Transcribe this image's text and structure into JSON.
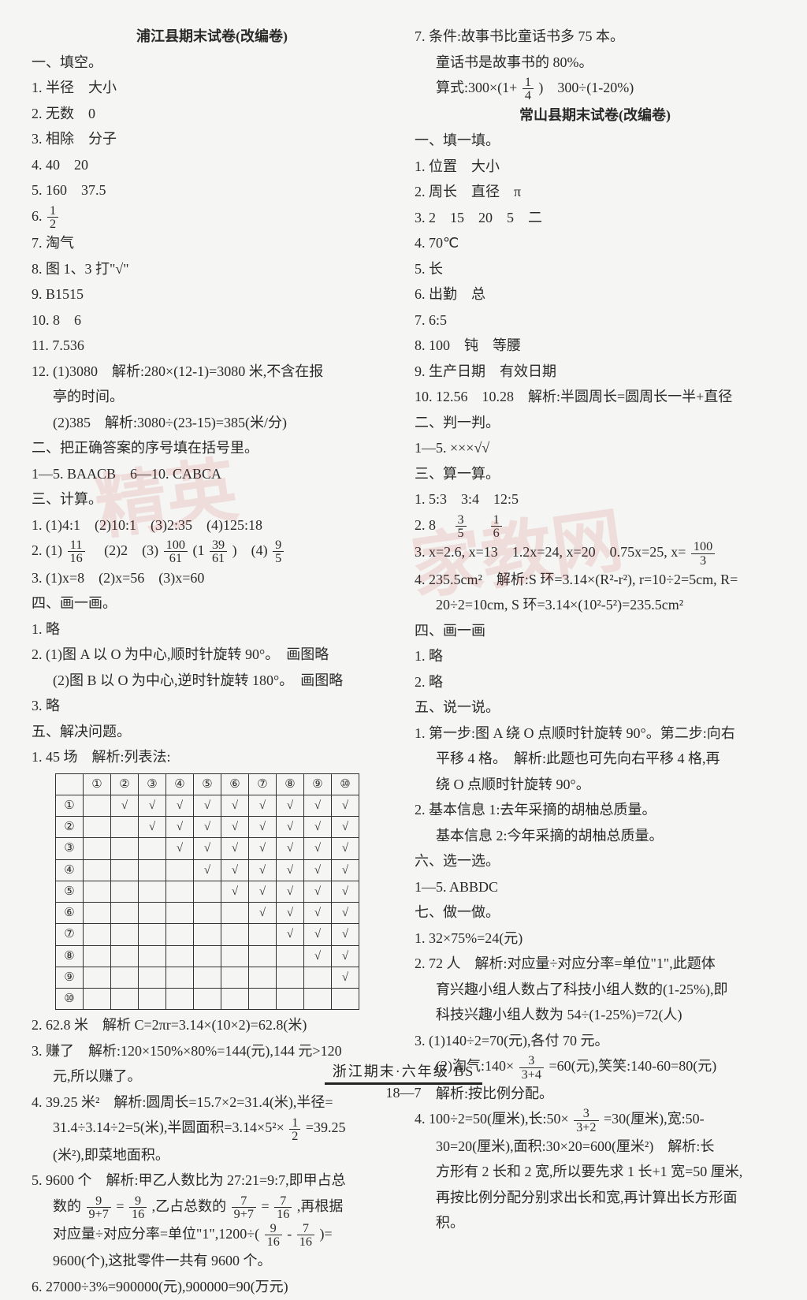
{
  "left": {
    "title": "浦江县期末试卷(改编卷)",
    "s1": "一、填空。",
    "i1": "1. 半径　大小",
    "i2": "2. 无数　0",
    "i3": "3. 相除　分子",
    "i4": "4. 40　20",
    "i5": "5. 160　37.5",
    "i6a": "6. ",
    "i6f_n": "1",
    "i6f_d": "2",
    "i7": "7. 淘气",
    "i8": "8. 图 1、3 打\"√\"",
    "i9": "9. B1515",
    "i10": "10. 8　6",
    "i11": "11. 7.536",
    "i12a": "12. (1)3080　解析:280×(12-1)=3080 米,不含在报",
    "i12b": "亭的时间。",
    "i12c": "(2)385　解析:3080÷(23-15)=385(米/分)",
    "s2": "二、把正确答案的序号填在括号里。",
    "i2_1": "1—5. BAACB　6—10. CABCA",
    "s3": "三、计算。",
    "i3_1": "1. (1)4:1　(2)10:1　(3)2:35　(4)125:18",
    "i3_2a": "2. (1)",
    "f11_n": "11",
    "f11_d": "16",
    "i3_2b": "　(2)2　(3)",
    "f100_n": "100",
    "f100_d": "61",
    "i3_2c": "(1",
    "f39_n": "39",
    "f39_d": "61",
    "i3_2d": ")　(4)",
    "f9_n": "9",
    "f9_d": "5",
    "i3_3": "3. (1)x=8　(2)x=56　(3)x=60",
    "s4": "四、画一画。",
    "i4_1": "1. 略",
    "i4_2": "2. (1)图 A 以 O 为中心,顺时针旋转 90°。　画图略",
    "i4_2b": "(2)图 B 以 O 为中心,逆时针旋转 180°。　画图略",
    "i4_3": "3. 略",
    "s5": "五、解决问题。",
    "i5_1": "1. 45 场　解析:列表法:",
    "table_cols": [
      "",
      "①",
      "②",
      "③",
      "④",
      "⑤",
      "⑥",
      "⑦",
      "⑧",
      "⑨",
      "⑩"
    ],
    "table_rows": [
      [
        "①",
        "",
        "√",
        "√",
        "√",
        "√",
        "√",
        "√",
        "√",
        "√",
        "√"
      ],
      [
        "②",
        "",
        "",
        "√",
        "√",
        "√",
        "√",
        "√",
        "√",
        "√",
        "√"
      ],
      [
        "③",
        "",
        "",
        "",
        "√",
        "√",
        "√",
        "√",
        "√",
        "√",
        "√"
      ],
      [
        "④",
        "",
        "",
        "",
        "",
        "√",
        "√",
        "√",
        "√",
        "√",
        "√"
      ],
      [
        "⑤",
        "",
        "",
        "",
        "",
        "",
        "√",
        "√",
        "√",
        "√",
        "√"
      ],
      [
        "⑥",
        "",
        "",
        "",
        "",
        "",
        "",
        "√",
        "√",
        "√",
        "√"
      ],
      [
        "⑦",
        "",
        "",
        "",
        "",
        "",
        "",
        "",
        "√",
        "√",
        "√"
      ],
      [
        "⑧",
        "",
        "",
        "",
        "",
        "",
        "",
        "",
        "",
        "√",
        "√"
      ],
      [
        "⑨",
        "",
        "",
        "",
        "",
        "",
        "",
        "",
        "",
        "",
        "√"
      ],
      [
        "⑩",
        "",
        "",
        "",
        "",
        "",
        "",
        "",
        "",
        "",
        ""
      ]
    ],
    "i5_2": "2. 62.8 米　解析 C=2πr=3.14×(10×2)=62.8(米)",
    "i5_3a": "3. 赚了　解析:120×150%×80%=144(元),144 元>120",
    "i5_3b": "元,所以赚了。",
    "i5_4a": "4. 39.25 米²　解析:圆周长=15.7×2=31.4(米),半径=",
    "i5_4b": "31.4÷3.14÷2=5(米),半圆面积=3.14×5²×",
    "f12_n": "1",
    "f12_d": "2",
    "i5_4c": "=39.25",
    "i5_4d": "(米²),即菜地面积。",
    "i5_5a": "5. 9600 个　解析:甲乙人数比为 27:21=9:7,即甲占总",
    "i5_5b": "数的",
    "fa_n": "9",
    "fa_d": "9+7",
    "i5_5c": "=",
    "fb_n": "9",
    "fb_d": "16",
    "i5_5d": ",乙占总数的",
    "fc_n": "7",
    "fc_d": "9+7",
    "i5_5e": "=",
    "fd_n": "7",
    "fd_d": "16",
    "i5_5f": ",再根据",
    "i5_5g": "对应量÷对应分率=单位\"1\",1200÷(",
    "fe_n": "9",
    "fe_d": "16",
    "i5_5h": "-",
    "ff_n": "7",
    "ff_d": "16",
    "i5_5i": ")=",
    "i5_5j": "9600(个),这批零件一共有 9600 个。",
    "i5_6": "6. 27000÷3%=900000(元),900000=90(万元)"
  },
  "right": {
    "r7a": "7. 条件:故事书比童话书多 75 本。",
    "r7b": "童话书是故事书的 80%。",
    "r7c": "算式:300×(1+",
    "rf14_n": "1",
    "rf14_d": "4",
    "r7d": ")　300÷(1-20%)",
    "title": "常山县期末试卷(改编卷)",
    "s1": "一、填一填。",
    "i1": "1. 位置　大小",
    "i2": "2. 周长　直径　π",
    "i3": "3. 2　15　20　5　二",
    "i4": "4. 70℃",
    "i5": "5. 长",
    "i6": "6. 出勤　总",
    "i7": "7. 6:5",
    "i8": "8. 100　钝　等腰",
    "i9": "9. 生产日期　有效日期",
    "i10": "10. 12.56　10.28　解析:半圆周长=圆周长一半+直径",
    "s2": "二、判一判。",
    "i2_1": "1—5. ×××√√",
    "s3": "三、算一算。",
    "i3_1": "1. 5:3　3:4　12:5",
    "i3_2a": "2. 8　",
    "rf35_n": "3",
    "rf35_d": "5",
    "i3_2b": "　",
    "rf16_n": "1",
    "rf16_d": "6",
    "i3_3a": "3. x=2.6, x=13　1.2x=24, x=20　0.75x=25, x=",
    "rf100_n": "100",
    "rf100_d": "3",
    "i3_4a": "4. 235.5cm²　解析:S 环=3.14×(R²-r²), r=10÷2=5cm, R=",
    "i3_4b": "20÷2=10cm, S 环=3.14×(10²-5²)=235.5cm²",
    "s4": "四、画一画",
    "i4_1": "1. 略",
    "i4_2": "2. 略",
    "s5": "五、说一说。",
    "i5_1a": "1. 第一步:图 A 绕 O 点顺时针旋转 90°。第二步:向右",
    "i5_1b": "平移 4 格。　解析:此题也可先向右平移 4 格,再",
    "i5_1c": "绕 O 点顺时针旋转 90°。",
    "i5_2a": "2. 基本信息 1:去年采摘的胡柚总质量。",
    "i5_2b": "基本信息 2:今年采摘的胡柚总质量。",
    "s6": "六、选一选。",
    "i6_1": "1—5. ABBDC",
    "s7": "七、做一做。",
    "i7_1": "1. 32×75%=24(元)",
    "i7_2a": "2. 72 人　解析:对应量÷对应分率=单位\"1\",此题体",
    "i7_2b": "育兴趣小组人数占了科技小组人数的(1-25%),即",
    "i7_2c": "科技兴趣小组人数为 54÷(1-25%)=72(人)",
    "i7_3a": "3. (1)140÷2=70(元),各付 70 元。",
    "i7_3b": "(2)淘气:140×",
    "rf37_n": "3",
    "rf37_d": "3+4",
    "i7_3c": "=60(元),笑笑:140-60=80(元)",
    "i7_3d": "解析:按比例分配。",
    "i7_4a": "4. 100÷2=50(厘米),长:50×",
    "rf32_n": "3",
    "rf32_d": "3+2",
    "i7_4b": "=30(厘米),宽:50-",
    "i7_4c": "30=20(厘米),面积:30×20=600(厘米²)　解析:长",
    "i7_4d": "方形有 2 长和 2 宽,所以要先求 1 长+1 宽=50 厘米,",
    "i7_4e": "再按比例分配分别求出长和宽,再计算出长方形面",
    "i7_4f": "积。"
  },
  "footer1": "浙江期末·六年级 BS",
  "footer2": "18—7"
}
